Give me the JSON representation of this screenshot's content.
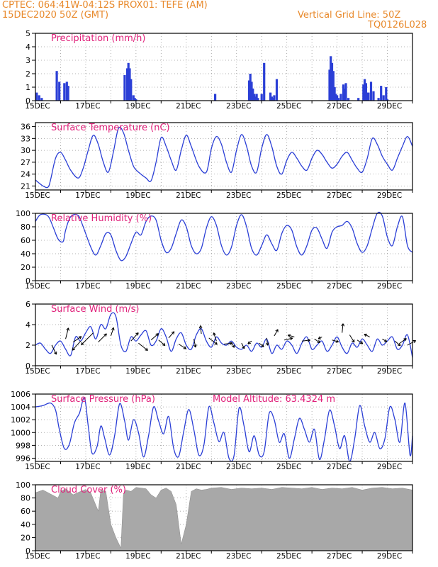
{
  "header": {
    "line1": "CPTEC:   064:41W-04:12S   PROX01: TEFE (AM)",
    "line2": "15DEC2020 50Z (GMT)",
    "right1": "Vertical Grid Line: 50Z",
    "right2": "TQ0126L028"
  },
  "x_ticks": [
    "15DEC",
    "17DEC",
    "19DEC",
    "21DEC",
    "23DEC",
    "25DEC",
    "27DEC",
    "29DEC"
  ],
  "colors": {
    "header": "#e8892b",
    "panel_title": "#e0207a",
    "series": "#2b3fd6",
    "cloud": "#a8a8a8",
    "arrow": "#000000"
  },
  "chart_data": [
    {
      "id": "precip",
      "type": "bar",
      "title": "Precipitation  (mm/h)",
      "xlim": [
        0,
        15
      ],
      "ylim": [
        0,
        5
      ],
      "yticks": [
        0,
        1,
        2,
        3,
        4,
        5
      ],
      "x": [
        0.05,
        0.15,
        0.25,
        0.85,
        0.95,
        1.15,
        1.25,
        1.3,
        3.55,
        3.65,
        3.7,
        3.75,
        3.8,
        3.9,
        3.95,
        4.0,
        7.15,
        8.5,
        8.55,
        8.6,
        8.65,
        8.7,
        8.75,
        8.8,
        8.85,
        9.0,
        9.1,
        9.35,
        9.4,
        9.45,
        9.5,
        9.6,
        11.7,
        11.75,
        11.8,
        11.85,
        11.9,
        11.95,
        12.0,
        12.05,
        12.15,
        12.25,
        12.3,
        12.35,
        12.45,
        12.85,
        13.05,
        13.1,
        13.15,
        13.2,
        13.25,
        13.35,
        13.45,
        13.65,
        13.75,
        13.85,
        13.95,
        14.0
      ],
      "values": [
        0.6,
        0.4,
        0.2,
        2.2,
        1.4,
        1.3,
        1.4,
        1.1,
        1.9,
        2.4,
        2.8,
        2.4,
        1.6,
        0.4,
        0.2,
        0.1,
        0.5,
        1.5,
        2.0,
        1.4,
        0.9,
        0.5,
        0.3,
        0.5,
        0.2,
        0.5,
        2.8,
        0.6,
        0.3,
        0.2,
        0.4,
        1.6,
        2.3,
        3.3,
        2.8,
        2.2,
        1.0,
        0.5,
        0.4,
        0.2,
        0.5,
        1.2,
        0.9,
        1.3,
        0.2,
        0.2,
        1.2,
        1.6,
        1.3,
        0.6,
        0.6,
        1.4,
        0.7,
        0.2,
        1.1,
        0.4,
        1.0,
        0.1
      ],
      "xlabel": "",
      "ylabel": "",
      "grid": true
    },
    {
      "id": "temp",
      "type": "line",
      "title": "Surface Temperature (nC)",
      "xlim": [
        0,
        15
      ],
      "ylim": [
        20,
        37
      ],
      "yticks": [
        21,
        24,
        27,
        30,
        33,
        36
      ],
      "x": [
        0,
        0.3,
        0.5,
        0.6,
        0.8,
        1.0,
        1.2,
        1.4,
        1.7,
        1.9,
        2.1,
        2.3,
        2.5,
        2.7,
        2.9,
        3.1,
        3.3,
        3.5,
        3.7,
        3.9,
        4.1,
        4.4,
        4.6,
        4.8,
        5.0,
        5.2,
        5.4,
        5.6,
        5.8,
        6.0,
        6.2,
        6.5,
        6.8,
        7.0,
        7.2,
        7.4,
        7.6,
        7.8,
        8.0,
        8.2,
        8.4,
        8.6,
        8.8,
        9.0,
        9.2,
        9.4,
        9.6,
        9.8,
        10.0,
        10.2,
        10.4,
        10.6,
        10.8,
        11.0,
        11.2,
        11.4,
        11.6,
        11.8,
        12.0,
        12.2,
        12.4,
        12.6,
        12.8,
        13.0,
        13.2,
        13.4,
        13.6,
        13.8,
        14.0,
        14.2,
        14.4,
        14.6,
        14.8,
        15.0
      ],
      "values": [
        22.5,
        21.0,
        20.7,
        22.5,
        28.0,
        29.5,
        27.5,
        25.0,
        23.0,
        25.5,
        30.0,
        33.8,
        31.5,
        27.0,
        24.5,
        29.5,
        35.5,
        34.5,
        30.0,
        26.0,
        24.5,
        23.0,
        22.3,
        27.0,
        33.2,
        31.0,
        27.5,
        25.0,
        30.0,
        33.8,
        31.0,
        26.0,
        24.5,
        30.5,
        33.5,
        31.5,
        27.0,
        24.5,
        30.0,
        34.0,
        31.0,
        26.0,
        24.5,
        30.5,
        34.0,
        31.0,
        26.0,
        24.0,
        27.5,
        29.5,
        28.0,
        26.0,
        25.0,
        28.0,
        30.0,
        29.0,
        27.0,
        25.5,
        26.5,
        28.5,
        29.5,
        27.5,
        25.5,
        24.5,
        28.0,
        33.0,
        31.5,
        28.5,
        26.5,
        25.0,
        28.0,
        31.0,
        33.5,
        31.0
      ],
      "xlabel": "",
      "ylabel": "",
      "grid": true
    },
    {
      "id": "rh",
      "type": "line",
      "title": "Relative Humidity (%)",
      "xlim": [
        0,
        15
      ],
      "ylim": [
        0,
        100
      ],
      "yticks": [
        0,
        20,
        40,
        60,
        80,
        100
      ],
      "x": [
        0,
        0.2,
        0.5,
        0.7,
        0.9,
        1.1,
        1.2,
        1.4,
        1.7,
        1.9,
        2.2,
        2.4,
        2.6,
        2.8,
        3.0,
        3.2,
        3.4,
        3.6,
        3.8,
        4.0,
        4.2,
        4.4,
        4.6,
        4.8,
        5.0,
        5.2,
        5.4,
        5.6,
        5.8,
        6.0,
        6.2,
        6.4,
        6.6,
        6.8,
        7.0,
        7.2,
        7.4,
        7.6,
        7.8,
        8.0,
        8.2,
        8.4,
        8.6,
        8.8,
        9.0,
        9.2,
        9.4,
        9.6,
        9.8,
        10.0,
        10.2,
        10.4,
        10.6,
        10.8,
        11.0,
        11.2,
        11.4,
        11.6,
        11.8,
        12.0,
        12.2,
        12.4,
        12.6,
        12.8,
        13.0,
        13.2,
        13.4,
        13.6,
        13.8,
        14.0,
        14.2,
        14.4,
        14.6,
        14.8,
        15.0
      ],
      "values": [
        88,
        98,
        96,
        80,
        62,
        58,
        75,
        95,
        97,
        80,
        50,
        38,
        52,
        70,
        68,
        45,
        30,
        36,
        55,
        72,
        68,
        88,
        96,
        90,
        60,
        42,
        48,
        70,
        90,
        80,
        52,
        40,
        48,
        78,
        95,
        82,
        52,
        38,
        50,
        82,
        98,
        80,
        48,
        38,
        52,
        68,
        55,
        45,
        70,
        82,
        75,
        50,
        38,
        52,
        75,
        78,
        62,
        48,
        72,
        80,
        82,
        88,
        78,
        55,
        42,
        52,
        78,
        100,
        96,
        65,
        52,
        80,
        95,
        52,
        42
      ],
      "xlabel": "",
      "ylabel": "",
      "grid": true
    },
    {
      "id": "wind",
      "type": "line",
      "title": "Surface Wind (m/s)",
      "xlim": [
        0,
        15
      ],
      "ylim": [
        0,
        6
      ],
      "yticks": [
        0,
        2,
        4,
        6
      ],
      "x": [
        0,
        0.2,
        0.4,
        0.6,
        0.8,
        1.0,
        1.2,
        1.4,
        1.6,
        1.8,
        2.0,
        2.2,
        2.4,
        2.6,
        2.8,
        3.0,
        3.2,
        3.4,
        3.6,
        3.8,
        4.0,
        4.2,
        4.4,
        4.6,
        4.8,
        5.0,
        5.2,
        5.4,
        5.6,
        5.8,
        6.0,
        6.2,
        6.4,
        6.6,
        6.8,
        7.0,
        7.2,
        7.4,
        7.6,
        7.8,
        8.0,
        8.2,
        8.4,
        8.6,
        8.8,
        9.0,
        9.2,
        9.4,
        9.6,
        9.8,
        10.0,
        10.2,
        10.4,
        10.6,
        10.8,
        11.0,
        11.2,
        11.4,
        11.6,
        11.8,
        12.0,
        12.2,
        12.4,
        12.6,
        12.8,
        13.0,
        13.2,
        13.4,
        13.6,
        13.8,
        14.0,
        14.2,
        14.4,
        14.6,
        14.8,
        15.0
      ],
      "values": [
        2.0,
        2.2,
        1.6,
        1.2,
        2.0,
        2.4,
        1.6,
        1.0,
        2.8,
        2.4,
        3.2,
        3.8,
        2.6,
        4.0,
        3.6,
        5.0,
        4.8,
        2.0,
        1.4,
        2.8,
        2.4,
        3.0,
        3.4,
        2.0,
        2.4,
        3.6,
        2.8,
        1.4,
        2.6,
        3.2,
        2.0,
        1.6,
        3.0,
        3.6,
        2.4,
        1.8,
        2.8,
        2.2,
        2.0,
        2.4,
        1.8,
        1.6,
        2.0,
        1.4,
        2.2,
        1.8,
        2.6,
        1.2,
        2.0,
        1.6,
        2.4,
        2.0,
        1.2,
        2.2,
        2.8,
        1.6,
        2.0,
        2.4,
        1.4,
        2.0,
        2.8,
        1.8,
        1.2,
        2.2,
        1.8,
        2.6,
        2.0,
        1.4,
        2.6,
        2.0,
        2.4,
        2.8,
        1.6,
        2.0,
        3.0,
        0.8
      ],
      "arrows": [
        {
          "x": 0.65,
          "y": 2.0,
          "u": 0.5,
          "v": -1.0
        },
        {
          "x": 1.2,
          "y": 2.6,
          "u": 0.3,
          "v": 1.2
        },
        {
          "x": 1.5,
          "y": 2.3,
          "u": 0.9,
          "v": 0.6
        },
        {
          "x": 1.8,
          "y": 2.4,
          "u": -0.9,
          "v": -1.0
        },
        {
          "x": 2.3,
          "y": 3.2,
          "u": -1.3,
          "v": -1.3
        },
        {
          "x": 2.5,
          "y": 2.3,
          "u": 0.9,
          "v": 0.9
        },
        {
          "x": 3.0,
          "y": 2.9,
          "u": 0.3,
          "v": 0.9
        },
        {
          "x": 3.8,
          "y": 2.4,
          "u": 0.8,
          "v": 0.9
        },
        {
          "x": 4.1,
          "y": 2.2,
          "u": 1.0,
          "v": -0.8
        },
        {
          "x": 4.6,
          "y": 2.5,
          "u": 0.8,
          "v": 0.7
        },
        {
          "x": 4.9,
          "y": 2.5,
          "u": 0.7,
          "v": -0.6
        },
        {
          "x": 5.3,
          "y": 2.7,
          "u": 0.6,
          "v": 0.7
        },
        {
          "x": 5.7,
          "y": 2.1,
          "u": 0.8,
          "v": -0.5
        },
        {
          "x": 6.3,
          "y": 2.6,
          "u": 0.2,
          "v": -0.9
        },
        {
          "x": 6.6,
          "y": 3.1,
          "u": -0.1,
          "v": 0.9
        },
        {
          "x": 6.9,
          "y": 2.7,
          "u": 0.9,
          "v": -0.7
        },
        {
          "x": 7.2,
          "y": 2.4,
          "u": -0.3,
          "v": 0.9
        },
        {
          "x": 7.5,
          "y": 2.1,
          "u": 0.9,
          "v": 0.1
        },
        {
          "x": 7.8,
          "y": 2.3,
          "u": 0.3,
          "v": -0.6
        },
        {
          "x": 8.2,
          "y": 2.2,
          "u": 0.3,
          "v": -0.6
        },
        {
          "x": 8.6,
          "y": 2.4,
          "u": -0.4,
          "v": -0.3
        },
        {
          "x": 8.9,
          "y": 2.2,
          "u": 0.5,
          "v": -0.4
        },
        {
          "x": 9.2,
          "y": 2.7,
          "u": 0.1,
          "v": -0.8
        },
        {
          "x": 9.5,
          "y": 2.9,
          "u": 0.4,
          "v": 0.7
        },
        {
          "x": 9.9,
          "y": 2.5,
          "u": 0.9,
          "v": 0.2
        },
        {
          "x": 10.3,
          "y": 2.8,
          "u": -0.7,
          "v": 0.2
        },
        {
          "x": 10.6,
          "y": 2.4,
          "u": 0.9,
          "v": 0.1
        },
        {
          "x": 11.1,
          "y": 2.6,
          "u": 0.6,
          "v": -0.4
        },
        {
          "x": 11.4,
          "y": 2.8,
          "u": -0.4,
          "v": -0.2
        },
        {
          "x": 11.8,
          "y": 2.5,
          "u": 0.7,
          "v": -0.2
        },
        {
          "x": 12.2,
          "y": 3.2,
          "u": 0.1,
          "v": 1.0
        },
        {
          "x": 12.5,
          "y": 3.0,
          "u": 0.5,
          "v": -0.8
        },
        {
          "x": 12.8,
          "y": 2.5,
          "u": 0.6,
          "v": -0.4
        },
        {
          "x": 13.3,
          "y": 2.8,
          "u": -0.6,
          "v": 0.3
        },
        {
          "x": 13.8,
          "y": 2.6,
          "u": 0.5,
          "v": -0.3
        },
        {
          "x": 14.3,
          "y": 2.4,
          "u": 0.6,
          "v": -0.5
        },
        {
          "x": 14.5,
          "y": 2.2,
          "u": 0.7,
          "v": 0.5
        },
        {
          "x": 14.8,
          "y": 2.0,
          "u": 0.9,
          "v": 0.5
        }
      ],
      "xlabel": "",
      "ylabel": "",
      "grid": true
    },
    {
      "id": "pressure",
      "type": "line",
      "title": "Surface Pressure (hPa)",
      "annotation": "Model Altitude: 63.4324  m",
      "xlim": [
        0,
        15
      ],
      "ylim": [
        995.5,
        1006
      ],
      "yticks": [
        996,
        998,
        1000,
        1002,
        1004,
        1006
      ],
      "x": [
        0,
        0.3,
        0.6,
        0.8,
        0.95,
        1.15,
        1.35,
        1.55,
        1.75,
        1.95,
        2.1,
        2.25,
        2.45,
        2.6,
        2.75,
        2.95,
        3.15,
        3.35,
        3.55,
        3.7,
        3.9,
        4.1,
        4.3,
        4.5,
        4.7,
        4.9,
        5.1,
        5.3,
        5.5,
        5.7,
        5.9,
        6.1,
        6.3,
        6.5,
        6.7,
        6.9,
        7.1,
        7.3,
        7.5,
        7.7,
        7.9,
        8.1,
        8.3,
        8.5,
        8.7,
        8.9,
        9.1,
        9.3,
        9.5,
        9.7,
        9.9,
        10.1,
        10.3,
        10.5,
        10.7,
        10.9,
        11.1,
        11.3,
        11.5,
        11.7,
        11.9,
        12.1,
        12.3,
        12.5,
        12.7,
        12.9,
        13.1,
        13.3,
        13.5,
        13.7,
        13.9,
        14.1,
        14.3,
        14.5,
        14.7,
        14.9,
        15.0
      ],
      "values": [
        1004.0,
        1004.2,
        1004.6,
        1003.5,
        1000.5,
        997.5,
        998.2,
        1001.5,
        1003.0,
        1005.4,
        1001.0,
        996.8,
        997.8,
        1001.0,
        999.2,
        996.5,
        999.5,
        1004.5,
        1001.8,
        998.8,
        1002.0,
        1000.0,
        996.2,
        999.5,
        1004.0,
        1001.8,
        999.8,
        1002.5,
        997.5,
        996.3,
        1000.2,
        1003.6,
        1000.5,
        996.5,
        998.0,
        1004.0,
        1001.5,
        998.6,
        1000.0,
        996.0,
        996.4,
        1003.8,
        1001.0,
        997.0,
        999.5,
        996.5,
        997.0,
        1003.0,
        1002.0,
        998.5,
        999.8,
        996.0,
        999.0,
        1002.2,
        1000.5,
        998.5,
        1000.5,
        995.8,
        999.0,
        1003.5,
        1001.0,
        997.5,
        999.5,
        995.5,
        999.0,
        1004.2,
        1001.0,
        998.5,
        1000.0,
        997.5,
        999.0,
        1004.0,
        1002.0,
        998.5,
        1004.6,
        996.5,
        999.5
      ],
      "xlabel": "",
      "ylabel": "",
      "grid": true
    },
    {
      "id": "cloud",
      "type": "area",
      "title": "Cloud Cover (%)",
      "xlim": [
        0,
        15
      ],
      "ylim": [
        0,
        100
      ],
      "yticks": [
        0,
        20,
        40,
        60,
        80,
        100
      ],
      "x": [
        0,
        0.3,
        0.6,
        0.9,
        1.0,
        1.2,
        1.5,
        1.8,
        2.0,
        2.2,
        2.5,
        2.6,
        2.8,
        3.0,
        3.2,
        3.4,
        3.5,
        3.6,
        3.8,
        4.0,
        4.2,
        4.4,
        4.6,
        4.8,
        5.0,
        5.2,
        5.4,
        5.6,
        5.8,
        6.0,
        6.2,
        6.4,
        6.6,
        6.8,
        7.0,
        7.4,
        7.8,
        8.2,
        8.6,
        9.0,
        9.4,
        9.8,
        10.2,
        10.6,
        11.0,
        11.4,
        11.8,
        12.2,
        12.6,
        13.0,
        13.4,
        13.8,
        14.2,
        14.6,
        15.0
      ],
      "values": [
        88,
        92,
        86,
        80,
        90,
        94,
        85,
        90,
        93,
        88,
        60,
        92,
        90,
        40,
        20,
        4,
        85,
        92,
        90,
        96,
        95,
        94,
        85,
        80,
        92,
        95,
        90,
        70,
        10,
        40,
        90,
        94,
        92,
        93,
        95,
        96,
        93,
        95,
        94,
        95,
        93,
        96,
        95,
        94,
        96,
        93,
        95,
        94,
        96,
        92,
        95,
        96,
        94,
        95,
        92
      ],
      "xlabel": "",
      "ylabel": "",
      "grid": true
    }
  ]
}
